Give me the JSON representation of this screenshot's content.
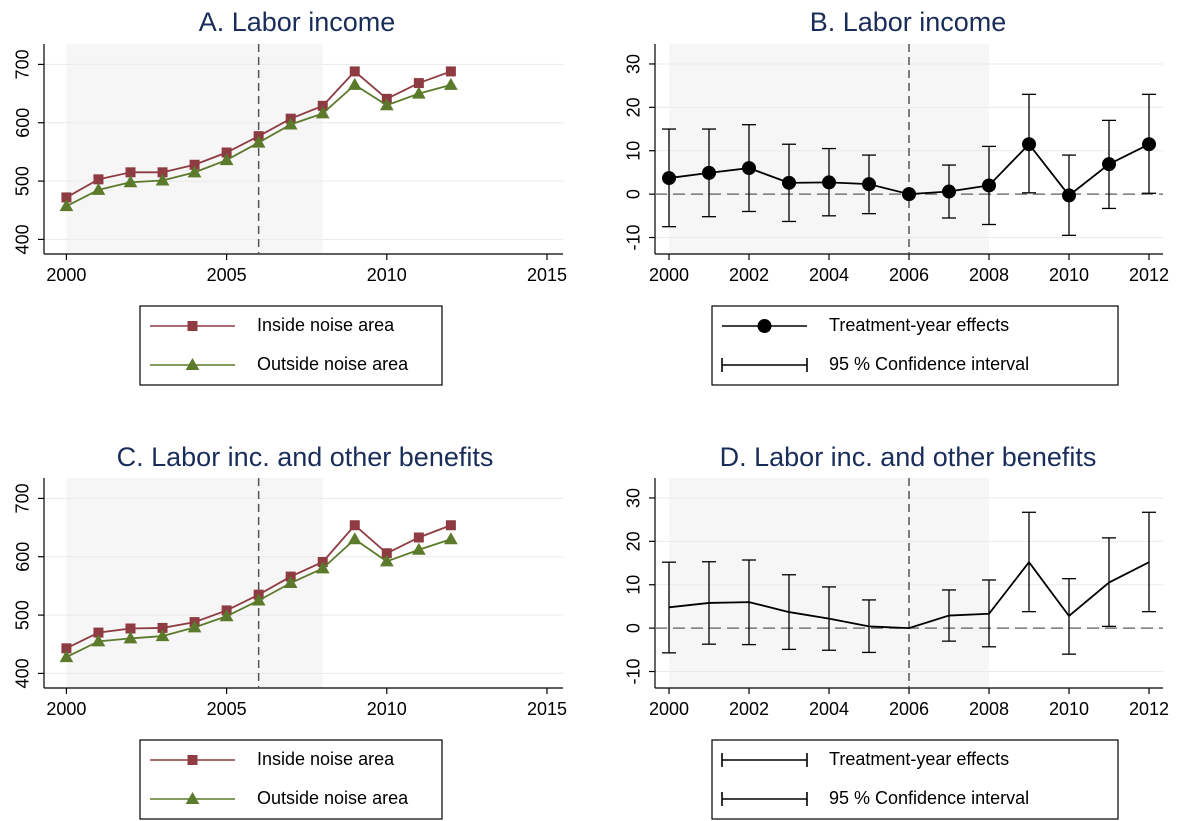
{
  "chart_data": [
    {
      "type": "line",
      "title": "A. Labor income",
      "x": [
        2000,
        2001,
        2002,
        2003,
        2004,
        2005,
        2006,
        2007,
        2008,
        2009,
        2010,
        2011,
        2012
      ],
      "xlim": [
        1999.3,
        2015.5
      ],
      "xticks": [
        2000,
        2005,
        2010,
        2015
      ],
      "ylim": [
        375,
        735
      ],
      "yticks": [
        400,
        500,
        600,
        700
      ],
      "grid": true,
      "shade": [
        2000,
        2008
      ],
      "vline": 2006,
      "series": [
        {
          "name": "Inside noise area",
          "color": "#8e3b42",
          "marker": "square",
          "values": [
            472,
            503,
            515,
            515,
            528,
            549,
            577,
            607,
            629,
            688,
            641,
            668,
            688
          ]
        },
        {
          "name": "Outside noise area",
          "color": "#5b7a2b",
          "marker": "triangle",
          "values": [
            457,
            485,
            498,
            501,
            515,
            536,
            566,
            597,
            616,
            665,
            630,
            650,
            665
          ]
        }
      ]
    },
    {
      "type": "line",
      "title": "B. Labor income",
      "x": [
        2000,
        2001,
        2002,
        2003,
        2004,
        2005,
        2006,
        2007,
        2008,
        2009,
        2010,
        2011,
        2012
      ],
      "xlim": [
        1999.65,
        2012.35
      ],
      "xticks": [
        2000,
        2002,
        2004,
        2006,
        2008,
        2010,
        2012
      ],
      "ylim": [
        -13.8,
        34.6
      ],
      "yticks": [
        -10,
        0,
        10,
        20,
        30
      ],
      "grid": true,
      "shade": [
        2000,
        2008
      ],
      "vline": 2006,
      "hline": 0,
      "series": [
        {
          "name": "Treatment-year effects",
          "color": "#000000",
          "marker": "circle",
          "values": [
            3.7,
            4.9,
            6,
            2.6,
            2.7,
            2.3,
            0,
            0.6,
            2,
            11.5,
            -0.3,
            6.9,
            11.5
          ]
        },
        {
          "name": "95 % Confidence interval",
          "color": "#000000",
          "type": "errorbar",
          "lower": [
            -7.5,
            -5.2,
            -4,
            -6.3,
            -5,
            -4.5,
            null,
            -5.5,
            -7,
            0.3,
            -9.5,
            -3.3,
            0.2
          ],
          "upper": [
            15,
            15,
            16,
            11.5,
            10.5,
            9,
            null,
            6.7,
            11,
            23,
            9,
            17,
            23
          ]
        }
      ]
    },
    {
      "type": "line",
      "title": "C. Labor inc. and other benefits",
      "x": [
        2000,
        2001,
        2002,
        2003,
        2004,
        2005,
        2006,
        2007,
        2008,
        2009,
        2010,
        2011,
        2012
      ],
      "xlim": [
        1999.3,
        2015.5
      ],
      "xticks": [
        2000,
        2005,
        2010,
        2015
      ],
      "ylim": [
        375,
        735
      ],
      "yticks": [
        400,
        500,
        600,
        700
      ],
      "grid": true,
      "shade": [
        2000,
        2008
      ],
      "vline": 2006,
      "series": [
        {
          "name": "Inside noise area",
          "color": "#8e3b42",
          "marker": "square",
          "values": [
            443,
            470,
            477,
            478,
            488,
            508,
            535,
            566,
            591,
            654,
            606,
            633,
            654
          ]
        },
        {
          "name": "Outside noise area",
          "color": "#5b7a2b",
          "marker": "triangle",
          "values": [
            428,
            455,
            460,
            464,
            479,
            498,
            525,
            555,
            580,
            630,
            592,
            612,
            630
          ]
        }
      ]
    },
    {
      "type": "line",
      "title": "D. Labor inc. and other benefits",
      "x": [
        2000,
        2001,
        2002,
        2003,
        2004,
        2005,
        2006,
        2007,
        2008,
        2009,
        2010,
        2011,
        2012
      ],
      "xlim": [
        1999.65,
        2012.35
      ],
      "xticks": [
        2000,
        2002,
        2004,
        2006,
        2008,
        2010,
        2012
      ],
      "ylim": [
        -13.8,
        34.6
      ],
      "yticks": [
        -10,
        0,
        10,
        20,
        30
      ],
      "grid": true,
      "shade": [
        2000,
        2008
      ],
      "vline": 2006,
      "hline": 0,
      "series": [
        {
          "name": "Treatment-year effects",
          "color": "#000000",
          "marker": "none",
          "values": [
            4.8,
            5.8,
            6,
            3.7,
            2.2,
            0.4,
            0,
            2.9,
            3.3,
            15.2,
            2.8,
            10.5,
            15.2
          ]
        },
        {
          "name": "95 % Confidence interval",
          "color": "#000000",
          "type": "errorbar",
          "lower": [
            -5.7,
            -3.7,
            -3.8,
            -4.9,
            -5.1,
            -5.6,
            null,
            -3,
            -4.3,
            3.8,
            -6,
            0.4,
            3.8
          ],
          "upper": [
            15.2,
            15.3,
            15.7,
            12.3,
            9.5,
            6.5,
            null,
            8.8,
            11.1,
            26.7,
            11.4,
            20.8,
            26.7
          ]
        }
      ]
    }
  ]
}
